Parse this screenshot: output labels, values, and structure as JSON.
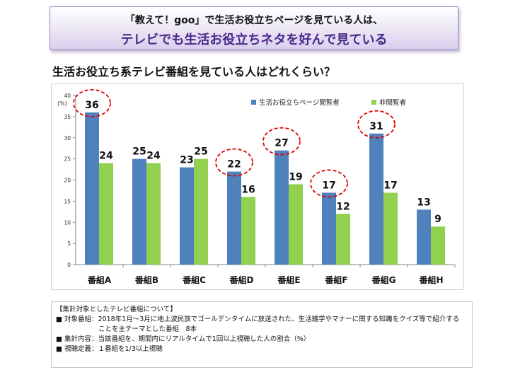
{
  "banner": {
    "line1": "「教えて！goo」で生活お役立ちページを見ている人は、",
    "line2": "テレビでも生活お役立ちネタを好んで見ている"
  },
  "subtitle": "生活お役立ち系テレビ番組を見ている人はどれくらい？",
  "chart_data": {
    "type": "bar",
    "title": "生活お役立ち系テレビ番組を見ている人はどれくらい？",
    "ylabel": "(%)",
    "xlabel": "",
    "ylim": [
      0,
      40
    ],
    "yticks": [
      0,
      5,
      10,
      15,
      20,
      25,
      30,
      35,
      40
    ],
    "categories": [
      "番組A",
      "番組B",
      "番組C",
      "番組D",
      "番組E",
      "番組F",
      "番組G",
      "番組H"
    ],
    "series": [
      {
        "name": "生活お役立ちページ閲覧者",
        "color": "#4f81bd",
        "values": [
          36,
          25,
          23,
          22,
          27,
          17,
          31,
          13
        ]
      },
      {
        "name": "非閲覧者",
        "color": "#92d050",
        "values": [
          24,
          24,
          25,
          16,
          19,
          12,
          17,
          9
        ]
      }
    ],
    "highlighted": [
      "番組A",
      "番組D",
      "番組E",
      "番組F",
      "番組G"
    ],
    "legend": "top-right",
    "grid": false
  },
  "notes": {
    "heading": "【集計対象としたテレビ番組について】",
    "line1": "■ 対象番組：2018年1月～3月に地上波民放でゴールデンタイムに放送された、生活雑学やマナーに関する知識をクイズ等で紹介する",
    "line1b": "ことを主テーマとした番組　8本",
    "line2": "■ 集計内容：当該番組を、期間内にリアルタイムで1回以上視聴した人の割合（%）",
    "line3": "■ 視聴定義：１番組を1/3以上視聴"
  }
}
